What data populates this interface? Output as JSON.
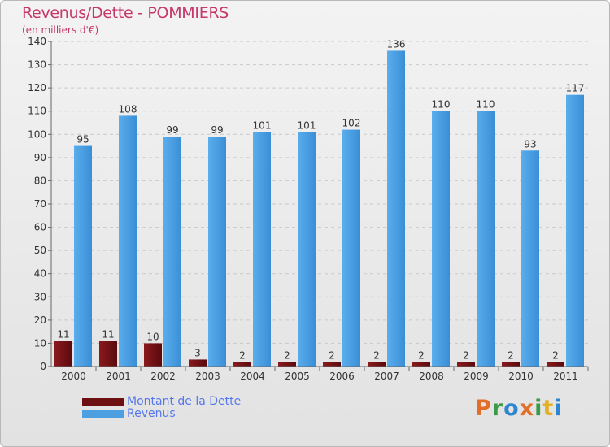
{
  "chart_data": {
    "type": "bar",
    "title": "Revenus/Dette - POMMIERS",
    "subtitle": "(en milliers d'€)",
    "categories": [
      "2000",
      "2001",
      "2002",
      "2003",
      "2004",
      "2005",
      "2006",
      "2007",
      "2008",
      "2009",
      "2010",
      "2011"
    ],
    "series": [
      {
        "name": "Montant de la Dette",
        "color": "#6e0f12",
        "values": [
          11,
          11,
          10,
          3,
          2,
          2,
          2,
          2,
          2,
          2,
          2,
          2
        ]
      },
      {
        "name": "Revenus",
        "color": "#4c9fe0",
        "values": [
          95,
          108,
          99,
          99,
          101,
          101,
          102,
          136,
          110,
          110,
          93,
          117
        ]
      }
    ],
    "ylim": [
      0,
      140
    ],
    "yticks": [
      0,
      10,
      20,
      30,
      40,
      50,
      60,
      70,
      80,
      90,
      100,
      110,
      120,
      130,
      140
    ],
    "grid": true,
    "legend": "bottom-left"
  },
  "logo": {
    "letters": [
      "P",
      "r",
      "o",
      "x",
      "i",
      "t",
      "i"
    ],
    "colors": [
      "#e36e2a",
      "#3a9a48",
      "#2e86d1",
      "#e36e2a",
      "#3a9a48",
      "#e3b02a",
      "#2e86d1"
    ]
  }
}
